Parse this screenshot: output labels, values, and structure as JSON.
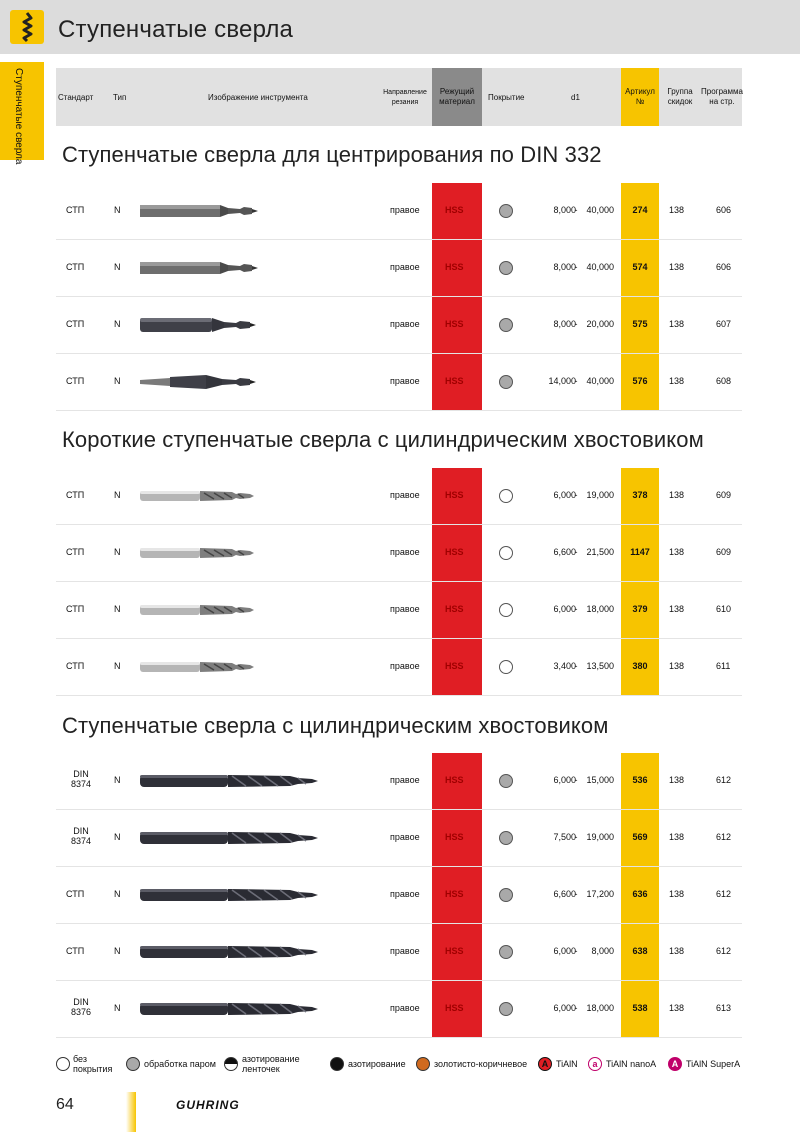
{
  "page": {
    "title": "Ступенчатые сверла",
    "side_tab": "Ступенчатые сверла",
    "page_number": "64",
    "brand": "GUHRING"
  },
  "header": {
    "standard": "Стандарт",
    "type": "Тип",
    "image": "Изображение инструмента",
    "direction_1": "Направление",
    "direction_2": "резания",
    "cutting_material_1": "Режущий",
    "cutting_material_2": "материал",
    "coating": "Покрытие",
    "d1": "d1",
    "article_1": "Артикул",
    "article_2": "№",
    "group_1": "Группа",
    "group_2": "скидок",
    "program_1": "Программа",
    "program_2": "на стр."
  },
  "colors": {
    "accent_yellow": "#f7c400",
    "cutting_red": "#e01e24",
    "header_gray": "#e1e1e1",
    "steam_gray": "#a9a9a9"
  },
  "sections": [
    {
      "title": "Ступенчатые сверла для центрирования по DIN 332",
      "rows": [
        {
          "standard": "СТП",
          "type": "N",
          "direction": "правое",
          "material": "HSS",
          "coating": "steam",
          "d_from": "8,000",
          "d_to": "40,000",
          "article": "274",
          "group": "138",
          "program": "606",
          "drill": "center-flat"
        },
        {
          "standard": "СТП",
          "type": "N",
          "direction": "правое",
          "material": "HSS",
          "coating": "steam",
          "d_from": "8,000",
          "d_to": "40,000",
          "article": "574",
          "group": "138",
          "program": "606",
          "drill": "center-flat"
        },
        {
          "standard": "СТП",
          "type": "N",
          "direction": "правое",
          "material": "HSS",
          "coating": "steam",
          "d_from": "8,000",
          "d_to": "20,000",
          "article": "575",
          "group": "138",
          "program": "607",
          "drill": "center-round"
        },
        {
          "standard": "СТП",
          "type": "N",
          "direction": "правое",
          "material": "HSS",
          "coating": "steam",
          "d_from": "14,000",
          "d_to": "40,000",
          "article": "576",
          "group": "138",
          "program": "608",
          "drill": "center-taper"
        }
      ]
    },
    {
      "title": "Короткие ступенчатые сверла с цилиндрическим хвостовиком",
      "rows": [
        {
          "standard": "СТП",
          "type": "N",
          "direction": "правое",
          "material": "HSS",
          "coating": "none",
          "d_from": "6,000",
          "d_to": "19,000",
          "article": "378",
          "group": "138",
          "program": "609",
          "drill": "short-bright"
        },
        {
          "standard": "СТП",
          "type": "N",
          "direction": "правое",
          "material": "HSS",
          "coating": "none",
          "d_from": "6,600",
          "d_to": "21,500",
          "article": "1147",
          "group": "138",
          "program": "609",
          "drill": "short-bright"
        },
        {
          "standard": "СТП",
          "type": "N",
          "direction": "правое",
          "material": "HSS",
          "coating": "none",
          "d_from": "6,000",
          "d_to": "18,000",
          "article": "379",
          "group": "138",
          "program": "610",
          "drill": "short-bright"
        },
        {
          "standard": "СТП",
          "type": "N",
          "direction": "правое",
          "material": "HSS",
          "coating": "none",
          "d_from": "3,400",
          "d_to": "13,500",
          "article": "380",
          "group": "138",
          "program": "611",
          "drill": "short-bright"
        }
      ]
    },
    {
      "title": "Ступенчатые сверла с цилиндрическим хвостовиком",
      "rows": [
        {
          "standard": "DIN 8374",
          "type": "N",
          "direction": "правое",
          "material": "HSS",
          "coating": "steam",
          "d_from": "6,000",
          "d_to": "15,000",
          "article": "536",
          "group": "138",
          "program": "612",
          "drill": "long-dark"
        },
        {
          "standard": "DIN 8374",
          "type": "N",
          "direction": "правое",
          "material": "HSS",
          "coating": "steam",
          "d_from": "7,500",
          "d_to": "19,000",
          "article": "569",
          "group": "138",
          "program": "612",
          "drill": "long-dark"
        },
        {
          "standard": "СТП",
          "type": "N",
          "direction": "правое",
          "material": "HSS",
          "coating": "steam",
          "d_from": "6,600",
          "d_to": "17,200",
          "article": "636",
          "group": "138",
          "program": "612",
          "drill": "long-dark"
        },
        {
          "standard": "СТП",
          "type": "N",
          "direction": "правое",
          "material": "HSS",
          "coating": "steam",
          "d_from": "6,000",
          "d_to": "8,000",
          "article": "638",
          "group": "138",
          "program": "612",
          "drill": "long-dark"
        },
        {
          "standard": "DIN 8376",
          "type": "N",
          "direction": "правое",
          "material": "HSS",
          "coating": "steam",
          "d_from": "6,000",
          "d_to": "18,000",
          "article": "538",
          "group": "138",
          "program": "613",
          "drill": "long-dark"
        }
      ]
    }
  ],
  "legend": [
    {
      "label_1": "без",
      "label_2": "покрытия",
      "symbol": "none"
    },
    {
      "label_1": "обработка паром",
      "label_2": "",
      "symbol": "steam"
    },
    {
      "label_1": "азотирование",
      "label_2": "ленточек",
      "symbol": "half"
    },
    {
      "label_1": "азотирование",
      "label_2": "",
      "symbol": "nitrided"
    },
    {
      "label_1": "золотисто-коричневое",
      "label_2": "",
      "symbol": "gold"
    },
    {
      "label_1": "TiAlN",
      "label_2": "",
      "symbol": "tialn",
      "mark": "A"
    },
    {
      "label_1": "TiAlN nanoA",
      "label_2": "",
      "symbol": "nanoa",
      "mark": "a"
    },
    {
      "label_1": "TiAlN SuperA",
      "label_2": "",
      "symbol": "supera",
      "mark": "A"
    }
  ]
}
